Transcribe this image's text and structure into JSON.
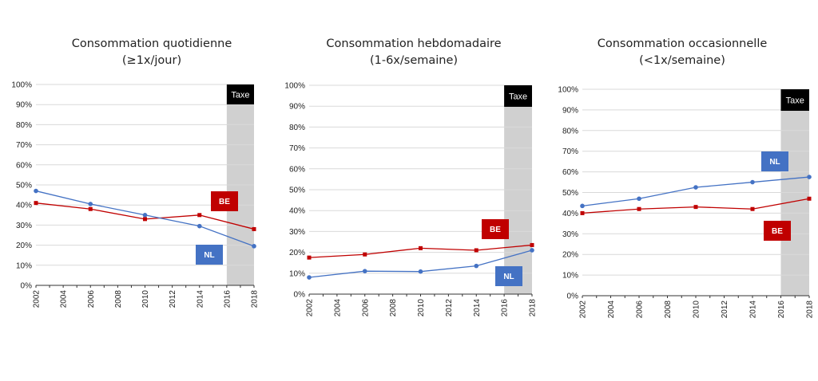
{
  "colors": {
    "be": "#c00000",
    "nl": "#4472c4",
    "tax_band": "#d0d0d0",
    "tax_label_bg": "#000000",
    "grid": "#d9d9d9"
  },
  "chart_data": [
    {
      "type": "line",
      "title": "Consommation quotidienne",
      "subtitle": "(≥1x/jour)",
      "x_ticks": [
        "2002",
        "2004",
        "2006",
        "2008",
        "2010",
        "2012",
        "2014",
        "2016",
        "2018"
      ],
      "y_ticks": [
        "0%",
        "10%",
        "20%",
        "30%",
        "40%",
        "50%",
        "60%",
        "70%",
        "80%",
        "90%",
        "100%"
      ],
      "ylim": [
        0,
        100
      ],
      "xlim": [
        2002,
        2018
      ],
      "grid": true,
      "tax_label": "Taxe",
      "tax_start": 2016,
      "series": [
        {
          "name": "BE",
          "color": "#c00000",
          "marker": "square",
          "x": [
            2002,
            2006,
            2010,
            2014,
            2018
          ],
          "y": [
            41,
            38,
            33,
            35,
            28
          ]
        },
        {
          "name": "NL",
          "color": "#4472c4",
          "marker": "circle",
          "x": [
            2002,
            2006,
            2010,
            2014,
            2018
          ],
          "y": [
            47,
            40.5,
            35,
            29.5,
            19.5
          ]
        }
      ]
    },
    {
      "type": "line",
      "title": "Consommation hebdomadaire",
      "subtitle": "(1-6x/semaine)",
      "x_ticks": [
        "2002",
        "2004",
        "2006",
        "2008",
        "2010",
        "2012",
        "2014",
        "2016",
        "2018"
      ],
      "y_ticks": [
        "0%",
        "10%",
        "20%",
        "30%",
        "40%",
        "50%",
        "60%",
        "70%",
        "80%",
        "90%",
        "100%"
      ],
      "ylim": [
        0,
        100
      ],
      "xlim": [
        2002,
        2018
      ],
      "grid": true,
      "tax_label": "Taxe",
      "tax_start": 2016,
      "series": [
        {
          "name": "BE",
          "color": "#c00000",
          "marker": "square",
          "x": [
            2002,
            2006,
            2010,
            2014,
            2018
          ],
          "y": [
            17.5,
            19,
            22,
            21,
            23.5
          ]
        },
        {
          "name": "NL",
          "color": "#4472c4",
          "marker": "circle",
          "x": [
            2002,
            2006,
            2010,
            2014,
            2018
          ],
          "y": [
            8,
            11,
            10.8,
            13.5,
            21
          ]
        }
      ]
    },
    {
      "type": "line",
      "title": "Consommation occasionnelle",
      "subtitle": "(<1x/semaine)",
      "x_ticks": [
        "2002",
        "2004",
        "2006",
        "2008",
        "2010",
        "2012",
        "2014",
        "2016",
        "2018"
      ],
      "y_ticks": [
        "0%",
        "10%",
        "20%",
        "30%",
        "40%",
        "50%",
        "60%",
        "70%",
        "80%",
        "90%",
        "100%"
      ],
      "ylim": [
        0,
        100
      ],
      "xlim": [
        2002,
        2018
      ],
      "grid": true,
      "tax_label": "Taxe",
      "tax_start": 2016,
      "series": [
        {
          "name": "BE",
          "color": "#c00000",
          "marker": "square",
          "x": [
            2002,
            2006,
            2010,
            2014,
            2018
          ],
          "y": [
            40,
            42,
            43,
            42,
            47
          ]
        },
        {
          "name": "NL",
          "color": "#4472c4",
          "marker": "circle",
          "x": [
            2002,
            2006,
            2010,
            2014,
            2018
          ],
          "y": [
            43.5,
            47,
            52.5,
            55,
            57.5
          ]
        }
      ]
    }
  ]
}
